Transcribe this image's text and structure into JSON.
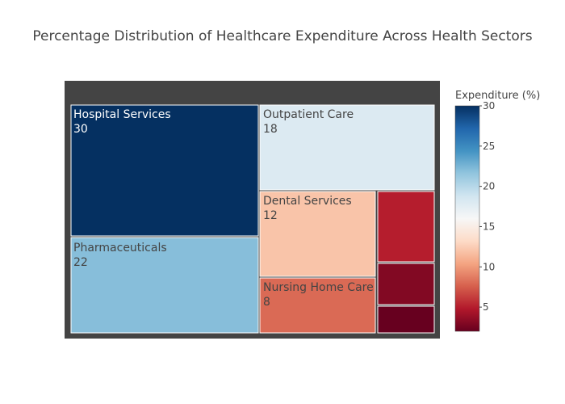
{
  "chart_data": {
    "type": "treemap",
    "title": "Percentage Distribution of Healthcare Expenditure Across Health Sectors",
    "items": [
      {
        "label": "Hospital Services",
        "value": 30
      },
      {
        "label": "Pharmaceuticals",
        "value": 22
      },
      {
        "label": "Outpatient Care",
        "value": 18
      },
      {
        "label": "Dental Services",
        "value": 12
      },
      {
        "label": "Nursing Home Care",
        "value": 8
      },
      {
        "label": "",
        "value": 5
      },
      {
        "label": "",
        "value": 3
      },
      {
        "label": "",
        "value": 2
      }
    ],
    "colorbar": {
      "title": "Expenditure (%)",
      "range": [
        2,
        30
      ],
      "ticks": [
        5,
        10,
        15,
        20,
        25,
        30
      ],
      "colorscale": "RdBu"
    }
  },
  "colors": {
    "background": "#ffffff",
    "frame": "#444444",
    "tile_border": "#ffffff",
    "text_dark": "#444444",
    "text_light": "#ffffff"
  }
}
